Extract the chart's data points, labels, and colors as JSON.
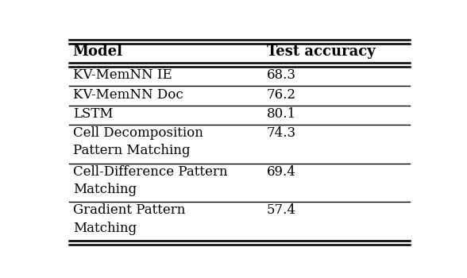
{
  "header": [
    "Model",
    "Test accuracy"
  ],
  "rows": [
    [
      "KV-MemNN IE",
      "68.3"
    ],
    [
      "KV-MemNN Doc",
      "76.2"
    ],
    [
      "LSTM",
      "80.1"
    ],
    [
      "Cell Decomposition\nPattern Matching",
      "74.3"
    ],
    [
      "Cell-Difference Pattern\nMatching",
      "69.4"
    ],
    [
      "Gradient Pattern\nMatching",
      "57.4"
    ]
  ],
  "row_line_units": [
    1,
    1,
    1,
    2,
    2,
    2
  ],
  "col_split": 0.58,
  "bg_color": "#ffffff",
  "text_color": "#000000",
  "header_fontsize": 13,
  "body_fontsize": 12,
  "font_family": "serif",
  "fig_width": 5.88,
  "fig_height": 3.5
}
